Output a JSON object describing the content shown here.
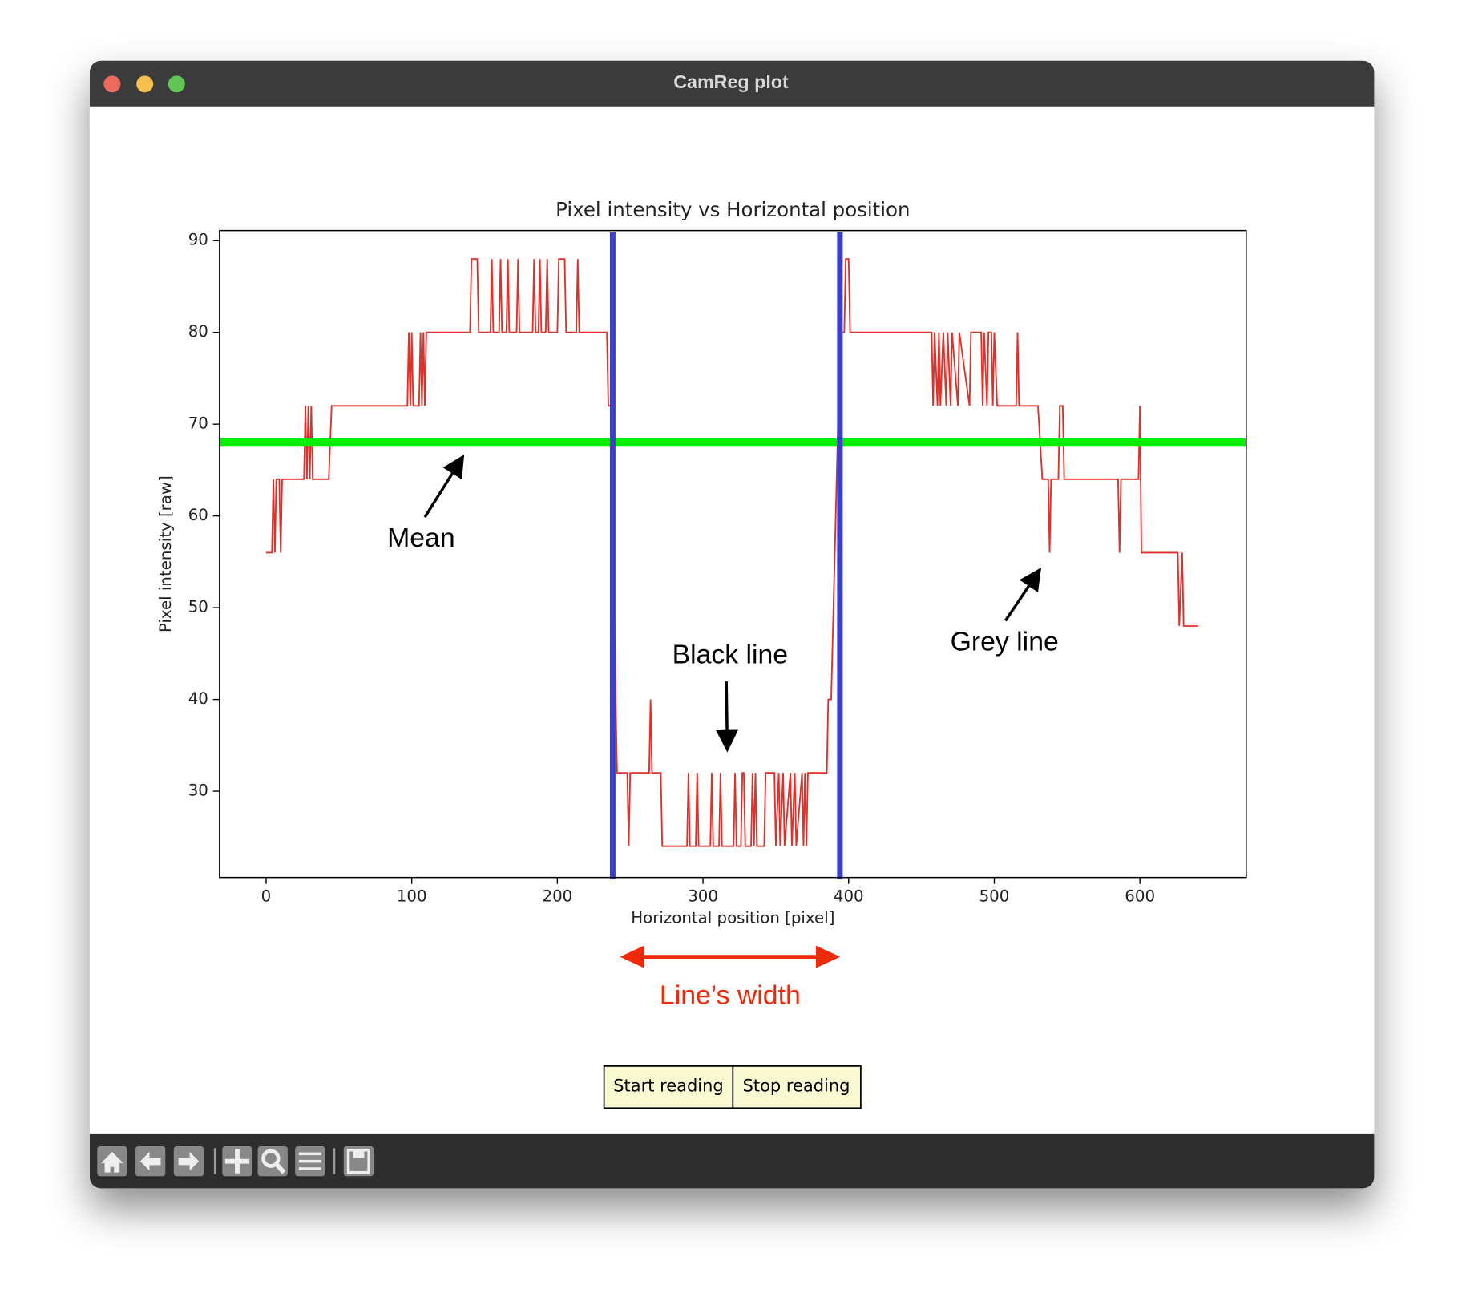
{
  "window": {
    "title": "CamReg plot"
  },
  "chart_data": {
    "type": "line",
    "title": "Pixel intensity vs Horizontal position",
    "x_label": "Horizontal position [pixel]",
    "y_label": "Pixel intensity [raw]",
    "color": "#e0302a",
    "x": [
      0,
      4,
      5,
      6,
      7,
      9,
      10,
      11,
      26,
      27,
      28,
      29,
      30,
      31,
      32,
      43,
      45,
      97,
      98,
      99,
      100,
      101,
      105,
      106,
      107,
      108,
      109,
      110,
      140,
      141,
      145,
      146,
      154,
      155,
      156,
      160,
      161,
      162,
      165,
      166,
      167,
      172,
      173,
      174,
      183,
      184,
      185,
      187,
      188,
      189,
      192,
      193,
      194,
      200,
      201,
      205,
      206,
      213,
      214,
      215,
      234,
      235,
      237,
      240,
      241,
      248,
      249,
      250,
      263,
      264,
      265,
      271,
      272,
      289,
      290,
      291,
      295,
      296,
      297,
      305,
      306,
      307,
      311,
      312,
      313,
      321,
      322,
      323,
      326,
      327,
      328,
      329,
      333,
      334,
      335,
      336,
      337,
      342,
      343,
      349,
      350,
      352,
      353,
      355,
      356,
      360,
      361,
      363,
      364,
      368,
      369,
      370,
      371,
      372,
      385,
      386,
      388,
      393,
      395,
      397,
      398,
      400,
      401,
      457,
      458,
      459,
      461,
      462,
      463,
      465,
      467,
      468,
      470,
      471,
      475,
      476,
      483,
      484,
      491,
      492,
      493,
      495,
      496,
      498,
      499,
      500,
      502,
      515,
      516,
      517,
      530,
      533,
      537,
      538,
      539,
      544,
      545,
      547,
      548,
      585,
      586,
      587,
      599,
      600,
      601,
      626,
      627,
      629,
      630,
      640
    ],
    "values": [
      56,
      56,
      64,
      56,
      64,
      64,
      56,
      64,
      64,
      72,
      64,
      72,
      64,
      72,
      64,
      64,
      72,
      72,
      80,
      72,
      80,
      72,
      72,
      80,
      72,
      80,
      72,
      80,
      80,
      88,
      88,
      80,
      80,
      88,
      80,
      80,
      88,
      80,
      80,
      88,
      80,
      80,
      88,
      80,
      80,
      88,
      80,
      80,
      88,
      80,
      80,
      88,
      80,
      80,
      88,
      88,
      80,
      80,
      88,
      80,
      80,
      72,
      72,
      40,
      32,
      32,
      24,
      32,
      32,
      40,
      32,
      32,
      24,
      24,
      32,
      24,
      24,
      32,
      24,
      24,
      32,
      24,
      24,
      32,
      24,
      24,
      32,
      24,
      24,
      32,
      32,
      24,
      24,
      32,
      24,
      32,
      24,
      24,
      32,
      32,
      24,
      32,
      24,
      32,
      24,
      32,
      24,
      32,
      24,
      32,
      24,
      32,
      24,
      32,
      32,
      40,
      40,
      72,
      80,
      80,
      88,
      88,
      80,
      80,
      72,
      80,
      72,
      80,
      72,
      80,
      72,
      80,
      72,
      80,
      72,
      80,
      72,
      80,
      80,
      72,
      80,
      72,
      80,
      80,
      72,
      80,
      72,
      72,
      80,
      72,
      72,
      64,
      64,
      56,
      64,
      64,
      72,
      72,
      64,
      64,
      56,
      64,
      64,
      72,
      56,
      56,
      48,
      56,
      48,
      48
    ],
    "mean": 68,
    "mean_color": "#00ee00",
    "line_edges": [
      238,
      394
    ],
    "edge_color": "#3a3fd0",
    "xlim": [
      -32,
      673
    ],
    "ylim": [
      20.6,
      91.1
    ],
    "xticks": [
      0,
      100,
      200,
      300,
      400,
      500,
      600
    ],
    "yticks": [
      30,
      40,
      50,
      60,
      70,
      80,
      90
    ],
    "annotations": [
      "Mean",
      "Black line",
      "Grey line",
      "Line’s width"
    ]
  },
  "buttons": [
    "Start reading",
    "Stop reading"
  ]
}
